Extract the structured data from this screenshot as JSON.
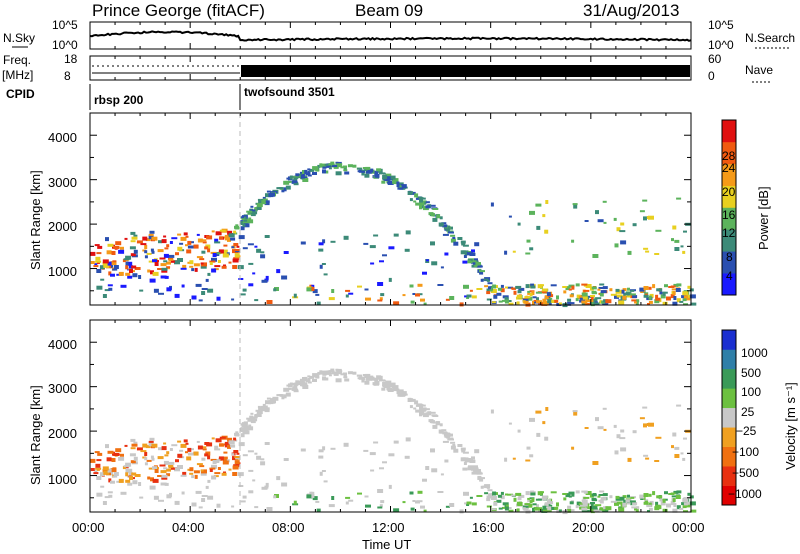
{
  "header": {
    "site": "Prince George (fitACF)",
    "beam": "Beam 09",
    "date": "31/Aug/2013"
  },
  "upper_panels": {
    "nsky_label": "N.Sky",
    "nsky_ticks": [
      "10^5",
      "10^0"
    ],
    "nsearch_label": "N.Search",
    "nsearch_ticks": [
      "10^5",
      "10^0"
    ],
    "freq_label": "Freq.",
    "freq_unit": "[MHz]",
    "freq_ticks": [
      "18",
      "8"
    ],
    "nave_label": "Nave",
    "nave_ticks": [
      "60",
      "0"
    ],
    "cpid_label": "CPID",
    "cpid_modes": [
      {
        "name": "rbsp 200",
        "start_hour": 0
      },
      {
        "name": "twofsound 3501",
        "start_hour": 6
      }
    ]
  },
  "power_panel": {
    "ylabel": "Slant Range [km]",
    "yticks": [
      "1000",
      "2000",
      "3000",
      "4000"
    ],
    "colorbar_label": "Power [dB]",
    "colorbar_ticks": [
      "4",
      "8",
      "12",
      "16",
      "20",
      "24",
      "28"
    ],
    "colors": [
      "#1a1aff",
      "#2a4fb0",
      "#3c8a78",
      "#5cb35c",
      "#e8d020",
      "#f59a18",
      "#f05a10",
      "#e01010"
    ]
  },
  "velocity_panel": {
    "ylabel": "Slant Range [km]",
    "yticks": [
      "1000",
      "2000",
      "3000",
      "4000"
    ],
    "colorbar_label": "Velocity [m s⁻¹]",
    "colorbar_ticks": [
      "1000",
      "500",
      "100",
      "25",
      "−25",
      "−100",
      "−500",
      "−1000"
    ],
    "colors": [
      "#1a2fd0",
      "#2f7fa8",
      "#3a9a58",
      "#6cc040",
      "#c8c8c8",
      "#f0a020",
      "#f07010",
      "#e83010",
      "#e00000"
    ]
  },
  "time_axis": {
    "xlabel": "Time UT",
    "ticks": [
      "00:00",
      "04:00",
      "08:00",
      "12:00",
      "16:00",
      "20:00",
      "00:00"
    ]
  },
  "chart_data": {
    "type": "heatmap",
    "x_range_hours": [
      0,
      24
    ],
    "y_range_km": [
      180,
      4500
    ],
    "mode_change_hour": 6,
    "echo_regions": [
      {
        "name": "near-range band",
        "t0": 0,
        "t1": 6,
        "range_km": [
          800,
          1600
        ]
      },
      {
        "name": "ground scatter arc",
        "t0": 5,
        "t1": 16,
        "peak_km": 3300,
        "peak_hour": 10
      },
      {
        "name": "low-range echoes",
        "t0": 7,
        "t1": 24,
        "range_km": [
          200,
          700
        ]
      },
      {
        "name": "late band",
        "t0": 16,
        "t1": 24,
        "range_km": [
          1300,
          2600
        ]
      }
    ]
  }
}
